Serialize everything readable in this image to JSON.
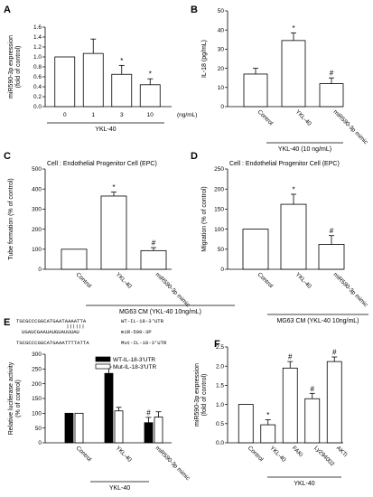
{
  "panels": [
    {
      "label": "A",
      "chart_data": {
        "type": "bar",
        "categories": [
          "0",
          "1",
          "3",
          "10"
        ],
        "values": [
          1.0,
          1.07,
          0.65,
          0.44
        ],
        "errors": [
          0,
          0.29,
          0.18,
          0.12
        ],
        "marks": [
          "",
          "",
          "*",
          "*"
        ],
        "ylabel": "miR590-3p expression\n(fold of control)",
        "ylim": [
          0,
          1.6
        ],
        "yticks": [
          "0.0",
          "0.2",
          "0.4",
          "0.6",
          "0.8",
          "1.0",
          "1.2",
          "1.4",
          "1.6"
        ],
        "unit": "(ng/mL)",
        "group_label": "YKL-40",
        "fill": "#ffffff"
      }
    },
    {
      "label": "B",
      "chart_data": {
        "type": "bar",
        "categories": [
          "Control",
          "YKL-40",
          "miR590-3p mimic"
        ],
        "values": [
          17,
          34.5,
          12
        ],
        "errors": [
          3,
          4,
          3
        ],
        "marks": [
          "",
          "*",
          "#"
        ],
        "ylabel": "IL-18 (pg/mL)",
        "ylim": [
          0,
          50
        ],
        "yticks": [
          "0",
          "10",
          "20",
          "30",
          "40",
          "50"
        ],
        "group_label": "YKL-40 (10 ng/mL)",
        "fill": "#ffffff"
      }
    },
    {
      "label": "C",
      "chart_data": {
        "type": "bar",
        "title": "Cell : Endothelial Progenitor Cell (EPC)",
        "categories": [
          "Control",
          "YKL-40",
          "miR590-3p mimic"
        ],
        "values": [
          100,
          365,
          93
        ],
        "errors": [
          0,
          20,
          15
        ],
        "marks": [
          "",
          "*",
          "#"
        ],
        "ylabel": "Tube formation (% of control)",
        "ylim": [
          0,
          500
        ],
        "yticks": [
          "0",
          "100",
          "200",
          "300",
          "400",
          "500"
        ],
        "group_label": "MG63 CM (YKL-40 10ng/mL)",
        "fill": "#ffffff"
      }
    },
    {
      "label": "D",
      "chart_data": {
        "type": "bar",
        "title": "Cell : Endothelial Progenitor Cell (EPC)",
        "categories": [
          "Control",
          "YKL-40",
          "miR590-3p mimic"
        ],
        "values": [
          100,
          162,
          62
        ],
        "errors": [
          0,
          25,
          22
        ],
        "marks": [
          "",
          "*",
          "#"
        ],
        "ylabel": "Migration (% of control)",
        "ylim": [
          0,
          250
        ],
        "yticks": [
          "0",
          "50",
          "100",
          "150",
          "200",
          "250"
        ],
        "group_label": "MG63 CM (YKL-40 10ng/mL)",
        "fill": "#ffffff"
      }
    },
    {
      "label": "E",
      "chart_data": {
        "type": "bar",
        "categories": [
          "Control",
          "YKL-40",
          "miR590-3p mimic"
        ],
        "series": [
          {
            "name": "WT-IL-18-3'UTR",
            "values": [
              100,
              235,
              68
            ],
            "errors": [
              0,
              22,
              18
            ],
            "marks": [
              "",
              "*",
              "#"
            ],
            "fill": "#000000"
          },
          {
            "name": "Mut-IL-18-3'UTR",
            "values": [
              100,
              108,
              87
            ],
            "errors": [
              0,
              12,
              18
            ],
            "marks": [
              "",
              "",
              ""
            ],
            "fill": "#ffffff"
          }
        ],
        "ylabel": "Relative luciferase activity\n(% of control)",
        "ylim": [
          0,
          300
        ],
        "yticks": [
          "0",
          "50",
          "100",
          "150",
          "200",
          "250",
          "300"
        ],
        "group_label": "YKL-40",
        "sequence": [
          {
            "seq": "TGCGCCCGGCATGAATAAAATTA",
            "name": "WT-IL-18-3'UTR"
          },
          {
            "seq": "UGAUCGAAUAUGUAUUUAU",
            "name": "miR-590-3P"
          },
          {
            "seq": "TGCGCCCGGCATGAAATTTTATTA",
            "name": "Mut-IL-18-3'UTR"
          }
        ]
      }
    },
    {
      "label": "F",
      "chart_data": {
        "type": "bar",
        "categories": [
          "Control",
          "YKL-40",
          "FAKi",
          "Ly294002",
          "AKTi"
        ],
        "values": [
          1.0,
          0.47,
          1.95,
          1.15,
          2.12
        ],
        "errors": [
          0,
          0.13,
          0.17,
          0.14,
          0.12
        ],
        "marks": [
          "",
          "*",
          "#",
          "#",
          "#"
        ],
        "ylabel": "miR590-3p expression\n(fold of control)",
        "ylim": [
          0,
          2.5
        ],
        "yticks": [
          "0.0",
          "0.5",
          "1.0",
          "1.5",
          "2.0",
          "2.5"
        ],
        "group_label": "YKL-40",
        "fill": "#ffffff"
      }
    }
  ]
}
